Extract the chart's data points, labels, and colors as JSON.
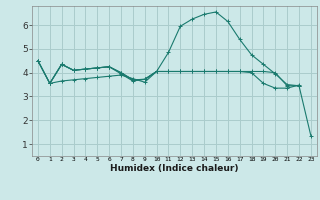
{
  "bg_color": "#cce8e8",
  "grid_color": "#aacccc",
  "line_color": "#1a7a6e",
  "xlabel": "Humidex (Indice chaleur)",
  "xlim": [
    -0.5,
    23.5
  ],
  "ylim": [
    0.5,
    6.8
  ],
  "yticks": [
    1,
    2,
    3,
    4,
    5,
    6
  ],
  "xticks": [
    0,
    1,
    2,
    3,
    4,
    5,
    6,
    7,
    8,
    9,
    10,
    11,
    12,
    13,
    14,
    15,
    16,
    17,
    18,
    19,
    20,
    21,
    22,
    23
  ],
  "series": [
    {
      "x": [
        0,
        1,
        2,
        3,
        4,
        5,
        6,
        7,
        8,
        9,
        10
      ],
      "y": [
        4.5,
        3.55,
        4.35,
        4.1,
        4.15,
        4.2,
        4.25,
        3.95,
        3.65,
        3.72,
        4.05
      ]
    },
    {
      "x": [
        0,
        1,
        2,
        3,
        4,
        5,
        6,
        7,
        8,
        9,
        10,
        11,
        12,
        13,
        14,
        15,
        16,
        17,
        18,
        19,
        20,
        21,
        22
      ],
      "y": [
        4.5,
        3.55,
        4.35,
        4.1,
        4.15,
        4.2,
        4.25,
        4.0,
        3.7,
        3.72,
        4.05,
        4.05,
        4.05,
        4.05,
        4.05,
        4.05,
        4.05,
        4.05,
        4.05,
        4.05,
        4.0,
        3.45,
        3.45
      ]
    },
    {
      "x": [
        0,
        1,
        2,
        3,
        4,
        5,
        6,
        7,
        8,
        9,
        10,
        11,
        12,
        13,
        14,
        15,
        16,
        17,
        18,
        19,
        20,
        21,
        22
      ],
      "y": [
        4.5,
        3.55,
        4.35,
        4.1,
        4.15,
        4.2,
        4.25,
        4.0,
        3.7,
        3.72,
        4.05,
        4.05,
        4.05,
        4.05,
        4.05,
        4.05,
        4.05,
        4.05,
        4.0,
        3.55,
        3.35,
        3.35,
        3.48
      ]
    },
    {
      "x": [
        1,
        2,
        3,
        4,
        5,
        6,
        7,
        8,
        9,
        10,
        11,
        12,
        13,
        14,
        15,
        16,
        17,
        18,
        19,
        20,
        21,
        22,
        23
      ],
      "y": [
        3.55,
        3.65,
        3.7,
        3.75,
        3.8,
        3.85,
        3.9,
        3.75,
        3.6,
        4.05,
        4.85,
        5.95,
        6.25,
        6.45,
        6.55,
        6.15,
        5.4,
        4.75,
        4.35,
        3.95,
        3.5,
        3.45,
        1.35
      ]
    }
  ]
}
